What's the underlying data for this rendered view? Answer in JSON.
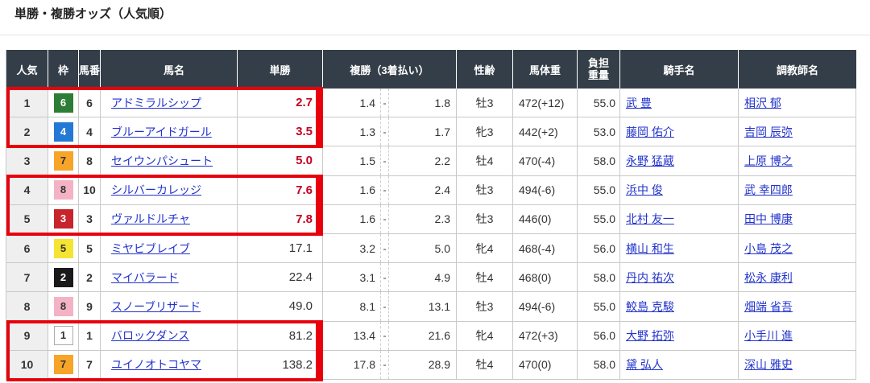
{
  "page": {
    "title": "単勝・複勝オッズ（人気順）"
  },
  "table": {
    "headers": {
      "rank": "人気",
      "waku": "枠",
      "num": "馬番",
      "name": "馬名",
      "win": "単勝",
      "place": "複勝（3着払い）",
      "sex_age": "性齢",
      "weight": "馬体重",
      "load1": "負担",
      "load2": "重量",
      "jockey": "騎手名",
      "trainer": "調教師名"
    },
    "rows": [
      {
        "rank": "1",
        "waku": "6",
        "num": "6",
        "name": "アドミラルシップ",
        "win": "2.7",
        "win_hot": true,
        "place_low": "1.4",
        "place_sep": "-",
        "place_high": "1.8",
        "sex_age": "牡3",
        "weight": "472(+12)",
        "load": "55.0",
        "jockey": "武 豊",
        "trainer": "相沢 郁"
      },
      {
        "rank": "2",
        "waku": "4",
        "num": "4",
        "name": "ブルーアイドガール",
        "win": "3.5",
        "win_hot": true,
        "place_low": "1.3",
        "place_sep": "-",
        "place_high": "1.7",
        "sex_age": "牝3",
        "weight": "442(+2)",
        "load": "53.0",
        "jockey": "藤岡 佑介",
        "trainer": "吉岡 辰弥"
      },
      {
        "rank": "3",
        "waku": "7",
        "num": "8",
        "name": "セイウンパシュート",
        "win": "5.0",
        "win_hot": true,
        "place_low": "1.5",
        "place_sep": "-",
        "place_high": "2.2",
        "sex_age": "牡4",
        "weight": "470(-4)",
        "load": "58.0",
        "jockey": "永野 猛蔵",
        "trainer": "上原 博之"
      },
      {
        "rank": "4",
        "waku": "8",
        "num": "10",
        "name": "シルバーカレッジ",
        "win": "7.6",
        "win_hot": true,
        "place_low": "1.6",
        "place_sep": "-",
        "place_high": "2.4",
        "sex_age": "牡3",
        "weight": "494(-6)",
        "load": "55.0",
        "jockey": "浜中 俊",
        "trainer": "武 幸四郎"
      },
      {
        "rank": "5",
        "waku": "3",
        "num": "3",
        "name": "ヴァルドルチャ",
        "win": "7.8",
        "win_hot": true,
        "place_low": "1.6",
        "place_sep": "-",
        "place_high": "2.3",
        "sex_age": "牡3",
        "weight": "446(0)",
        "load": "55.0",
        "jockey": "北村 友一",
        "trainer": "田中 博康"
      },
      {
        "rank": "6",
        "waku": "5",
        "num": "5",
        "name": "ミヤビブレイブ",
        "win": "17.1",
        "win_hot": false,
        "place_low": "3.2",
        "place_sep": "-",
        "place_high": "5.0",
        "sex_age": "牝4",
        "weight": "468(-4)",
        "load": "56.0",
        "jockey": "横山 和生",
        "trainer": "小島 茂之"
      },
      {
        "rank": "7",
        "waku": "2",
        "num": "2",
        "name": "マイバラード",
        "win": "22.4",
        "win_hot": false,
        "place_low": "3.1",
        "place_sep": "-",
        "place_high": "4.9",
        "sex_age": "牡4",
        "weight": "468(0)",
        "load": "58.0",
        "jockey": "丹内 祐次",
        "trainer": "松永 康利"
      },
      {
        "rank": "8",
        "waku": "8",
        "num": "9",
        "name": "スノーブリザード",
        "win": "49.0",
        "win_hot": false,
        "place_low": "8.1",
        "place_sep": "-",
        "place_high": "13.1",
        "sex_age": "牡3",
        "weight": "494(-6)",
        "load": "55.0",
        "jockey": "鮫島 克駿",
        "trainer": "畑端 省吾"
      },
      {
        "rank": "9",
        "waku": "1",
        "num": "1",
        "name": "バロックダンス",
        "win": "81.2",
        "win_hot": false,
        "place_low": "13.4",
        "place_sep": "-",
        "place_high": "21.6",
        "sex_age": "牝4",
        "weight": "472(+3)",
        "load": "56.0",
        "jockey": "大野 拓弥",
        "trainer": "小手川 進"
      },
      {
        "rank": "10",
        "waku": "7",
        "num": "7",
        "name": "ユイノオトコヤマ",
        "win": "138.2",
        "win_hot": false,
        "place_low": "17.8",
        "place_sep": "-",
        "place_high": "28.9",
        "sex_age": "牡4",
        "weight": "470(0)",
        "load": "58.0",
        "jockey": "黛 弘人",
        "trainer": "深山 雅史"
      }
    ],
    "highlights": [
      {
        "from": 1,
        "to": 2
      },
      {
        "from": 4,
        "to": 5
      },
      {
        "from": 9,
        "to": 10
      }
    ]
  },
  "colors": {
    "header_bg": "#343e48",
    "header_text": "#ffffff",
    "highlight_red": "#e8000d",
    "hot_odds": "#c50021",
    "link": "#2233cc",
    "rank_column_bg": "#efefef",
    "cell_border": "#c9c9c9",
    "waku": {
      "1": {
        "bg": "#ffffff",
        "text": "#333333",
        "border": "#aaaaaa"
      },
      "2": {
        "bg": "#1a1a1a",
        "text": "#ffffff",
        "border": "#1a1a1a"
      },
      "3": {
        "bg": "#c7242c",
        "text": "#ffffff",
        "border": "#c7242c"
      },
      "4": {
        "bg": "#2479d4",
        "text": "#ffffff",
        "border": "#2479d4"
      },
      "5": {
        "bg": "#f5e532",
        "text": "#333333",
        "border": "#f5e532"
      },
      "6": {
        "bg": "#2e7d36",
        "text": "#ffffff",
        "border": "#2e7d36"
      },
      "7": {
        "bg": "#f7a528",
        "text": "#333333",
        "border": "#f7a528"
      },
      "8": {
        "bg": "#f4b3c5",
        "text": "#333333",
        "border": "#f4b3c5"
      }
    }
  }
}
